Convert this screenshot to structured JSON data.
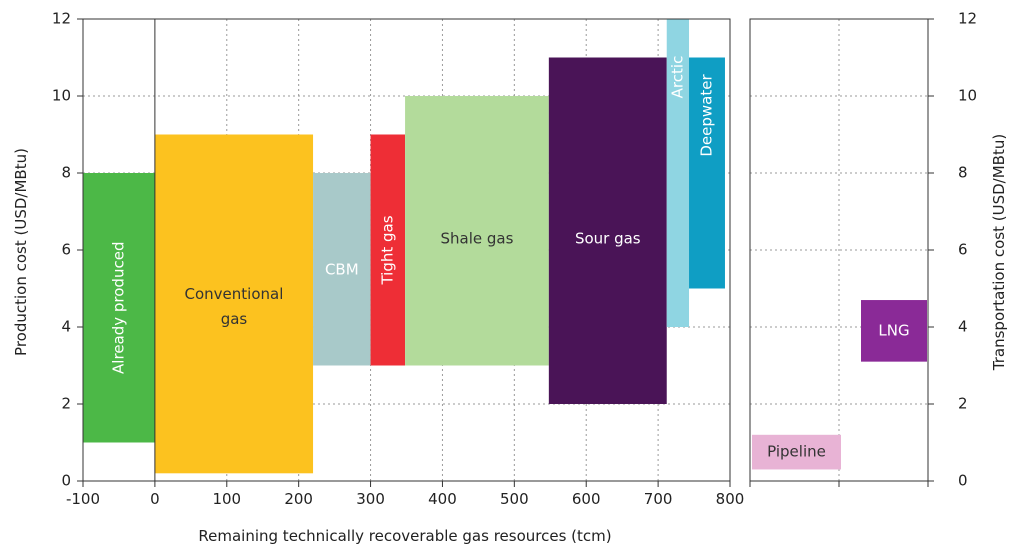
{
  "chart_data": [
    {
      "type": "bar",
      "variant": "supply-cost-curve",
      "title": "",
      "xlabel": "Remaining technically recoverable gas resources (tcm)",
      "ylabel": "Production cost (USD/MBtu)",
      "xlim": [
        -100,
        800
      ],
      "ylim": [
        0,
        12
      ],
      "xticks": [
        -100,
        0,
        100,
        200,
        300,
        400,
        500,
        600,
        700,
        800
      ],
      "yticks": [
        0,
        2,
        4,
        6,
        8,
        10,
        12
      ],
      "grid": true,
      "series": [
        {
          "name": "Already produced",
          "x_start": -100,
          "x_end": 0,
          "y_low": 1.0,
          "y_high": 8.0,
          "color": "#4cb847",
          "label_color": "#ffffff",
          "label_orientation": "vertical"
        },
        {
          "name": "Conventional gas",
          "x_start": 0,
          "x_end": 220,
          "y_low": 0.2,
          "y_high": 9.0,
          "color": "#fcc21f",
          "label_color": "#333333",
          "label_orientation": "horizontal"
        },
        {
          "name": "CBM",
          "x_start": 220,
          "x_end": 300,
          "y_low": 3.0,
          "y_high": 8.0,
          "color": "#a8c9c9",
          "label_color": "#ffffff",
          "label_orientation": "horizontal"
        },
        {
          "name": "Tight gas",
          "x_start": 300,
          "x_end": 348,
          "y_low": 3.0,
          "y_high": 9.0,
          "color": "#ee2e36",
          "label_color": "#ffffff",
          "label_orientation": "vertical"
        },
        {
          "name": "Shale gas",
          "x_start": 348,
          "x_end": 548,
          "y_low": 3.0,
          "y_high": 10.0,
          "color": "#b3db9b",
          "label_color": "#333333",
          "label_orientation": "horizontal"
        },
        {
          "name": "Sour gas",
          "x_start": 548,
          "x_end": 712,
          "y_low": 2.0,
          "y_high": 11.0,
          "color": "#4a1457",
          "label_color": "#ffffff",
          "label_orientation": "horizontal"
        },
        {
          "name": "Arctic",
          "x_start": 712,
          "x_end": 743,
          "y_low": 4.0,
          "y_high": 12.0,
          "color": "#8fd5e2",
          "label_color": "#ffffff",
          "label_orientation": "vertical"
        },
        {
          "name": "Deepwater",
          "x_start": 743,
          "x_end": 793,
          "y_low": 5.0,
          "y_high": 11.0,
          "color": "#0f9ec4",
          "label_color": "#ffffff",
          "label_orientation": "vertical"
        }
      ]
    },
    {
      "type": "bar",
      "variant": "range-bars",
      "title": "",
      "xlabel": "",
      "ylabel": "Transportation cost (USD/MBtu)",
      "ylim": [
        0,
        12
      ],
      "yticks": [
        0,
        2,
        4,
        6,
        8,
        10,
        12
      ],
      "grid": true,
      "series": [
        {
          "name": "Pipeline",
          "y_low": 0.3,
          "y_high": 1.2,
          "color": "#e8b3d5",
          "label_color": "#333333"
        },
        {
          "name": "LNG",
          "y_low": 3.1,
          "y_high": 4.7,
          "color": "#8a2a97",
          "label_color": "#ffffff"
        }
      ]
    }
  ]
}
